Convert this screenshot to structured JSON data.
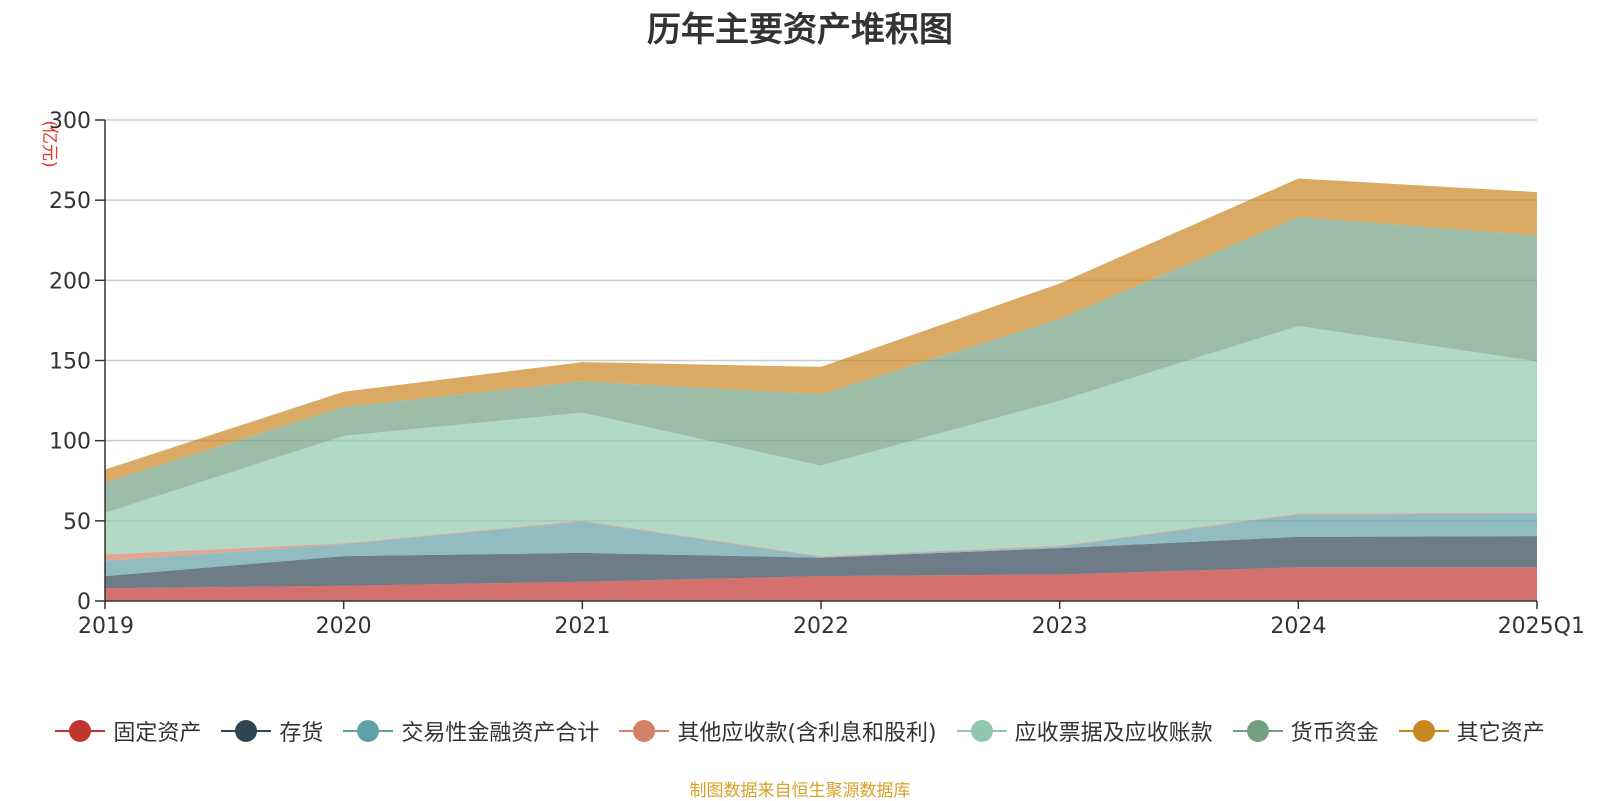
{
  "chart_data": {
    "type": "area",
    "stacked": true,
    "title": "历年主要资产堆积图",
    "unit_label": "(亿元)",
    "categories": [
      "2019",
      "2020",
      "2021",
      "2022",
      "2023",
      "2024",
      "2025Q1"
    ],
    "ylim": [
      0,
      300
    ],
    "yticks": [
      "0",
      "50",
      "100",
      "150",
      "200",
      "250",
      "300"
    ],
    "grid": true,
    "legend_position": "bottom",
    "series": [
      {
        "name": "固定资产",
        "color": "#c23531",
        "values": [
          8,
          9.5,
          12,
          15.5,
          16.5,
          21,
          21
        ]
      },
      {
        "name": "存货",
        "color": "#2f4554",
        "values": [
          7.5,
          18.5,
          18,
          11.5,
          16.5,
          19,
          19.5
        ]
      },
      {
        "name": "交易性金融资产合计",
        "color": "#61a0a8",
        "values": [
          9.5,
          7.5,
          19.5,
          0.5,
          1,
          14,
          14
        ]
      },
      {
        "name": "其他应收款(含利息和股利)",
        "color": "#d48265",
        "values": [
          4,
          0.5,
          0.5,
          0.5,
          0.5,
          0.5,
          0.5
        ]
      },
      {
        "name": "应收票据及应收账款",
        "color": "#91c7ae",
        "values": [
          26,
          67,
          67.5,
          56.5,
          90.5,
          117,
          94.5
        ]
      },
      {
        "name": "货币资金",
        "color": "#749f83",
        "values": [
          19,
          18,
          19.5,
          44.5,
          51,
          68,
          78.5
        ]
      },
      {
        "name": "其它资产",
        "color": "#ca8622",
        "values": [
          8,
          9.5,
          12,
          17,
          22,
          24,
          27
        ]
      }
    ]
  },
  "footer": {
    "source": "制图数据来自恒生聚源数据库"
  }
}
